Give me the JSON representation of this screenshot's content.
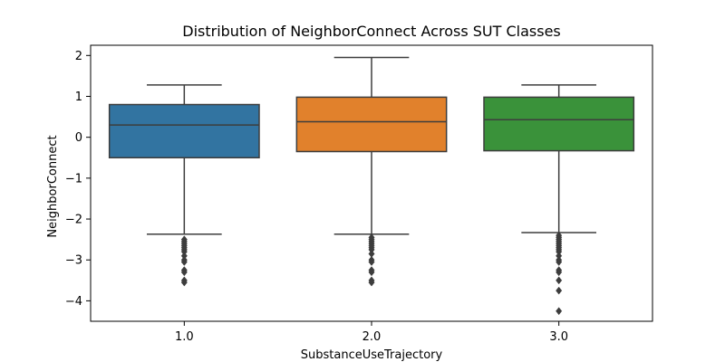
{
  "chart_data": {
    "type": "box",
    "title": "Distribution of NeighborConnect Across SUT Classes",
    "xlabel": "SubstanceUseTrajectory",
    "ylabel": "NeighborConnect",
    "ylim": [
      -4.5,
      2.25
    ],
    "yticks": [
      2,
      1,
      0,
      -1,
      -2,
      -3,
      -4
    ],
    "ytick_labels": [
      "2",
      "1",
      "0",
      "−1",
      "−2",
      "−3",
      "−4"
    ],
    "categories": [
      "1.0",
      "2.0",
      "3.0"
    ],
    "boxes": [
      {
        "category": "1.0",
        "color": "#3274a1",
        "whisker_low": -2.37,
        "q1": -0.5,
        "median": 0.3,
        "q3": 0.8,
        "whisker_high": 1.28,
        "outliers": [
          -2.5,
          -2.55,
          -2.6,
          -2.65,
          -2.7,
          -2.75,
          -2.8,
          -2.9,
          -3.0,
          -3.05,
          -3.25,
          -3.3,
          -3.5,
          -3.55
        ]
      },
      {
        "category": "2.0",
        "color": "#e1812c",
        "whisker_low": -2.37,
        "q1": -0.35,
        "median": 0.38,
        "q3": 0.98,
        "whisker_high": 1.95,
        "outliers": [
          -2.45,
          -2.5,
          -2.55,
          -2.6,
          -2.65,
          -2.7,
          -2.75,
          -2.85,
          -3.0,
          -3.05,
          -3.25,
          -3.3,
          -3.5,
          -3.55
        ]
      },
      {
        "category": "3.0",
        "color": "#3a923a",
        "whisker_low": -2.33,
        "q1": -0.33,
        "median": 0.43,
        "q3": 0.98,
        "whisker_high": 1.28,
        "outliers": [
          -2.4,
          -2.45,
          -2.5,
          -2.55,
          -2.6,
          -2.65,
          -2.7,
          -2.75,
          -2.8,
          -2.9,
          -3.0,
          -3.05,
          -3.25,
          -3.3,
          -3.5,
          -3.75,
          -4.25
        ]
      }
    ],
    "edge_color": "#3d3d3d",
    "grid": false,
    "legend": "none"
  }
}
